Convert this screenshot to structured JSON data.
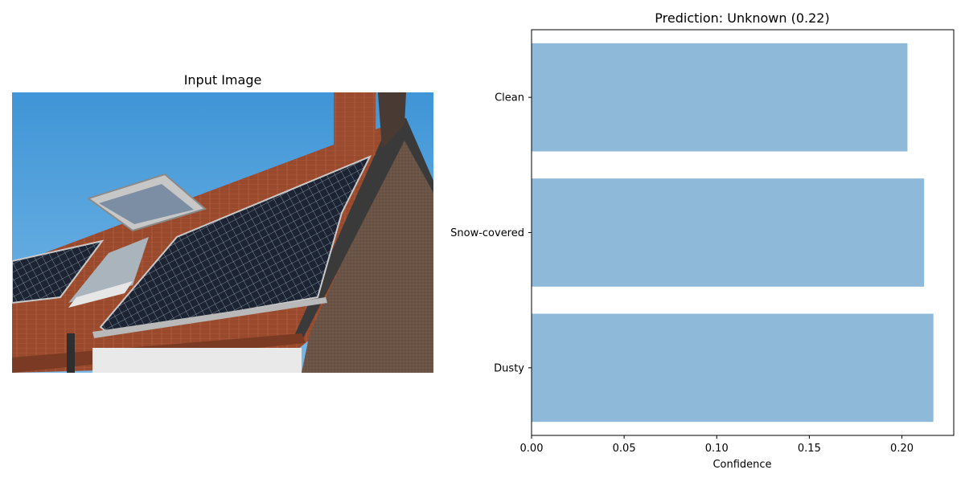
{
  "left_panel": {
    "title": "Input Image",
    "image_description_icon": "solar-panel-roof-photo"
  },
  "chart_data": {
    "type": "bar",
    "orientation": "horizontal",
    "title": "Prediction: Unknown (0.22)",
    "categories": [
      "Clean",
      "Snow-covered",
      "Dusty"
    ],
    "values": [
      0.203,
      0.212,
      0.217
    ],
    "xlabel": "Confidence",
    "ylabel": "",
    "xlim": [
      0,
      0.228
    ],
    "xticks": [
      "0.00",
      "0.05",
      "0.10",
      "0.15",
      "0.20"
    ],
    "xtick_values": [
      0,
      0.05,
      0.1,
      0.15,
      0.2
    ],
    "bar_color": "#8fb9d9",
    "grid": false
  }
}
